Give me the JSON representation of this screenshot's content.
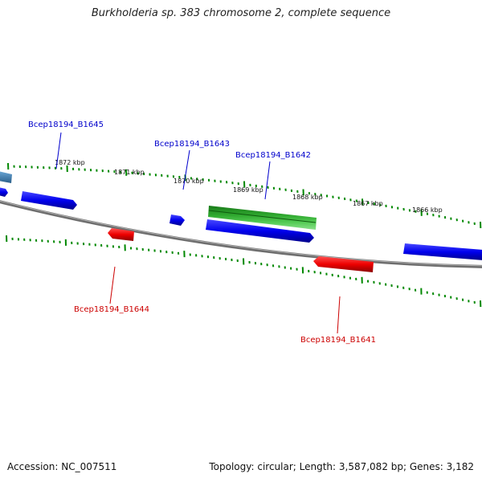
{
  "title": "Burkholderia sp. 383 chromosome 2, complete sequence",
  "footer": {
    "accession": "Accession: NC_007511",
    "topology": "Topology: circular; Length: 3,587,082 bp; Genes: 3,182"
  },
  "kbp_labels": [
    "1872 kbp",
    "1871 kbp",
    "1870 kbp",
    "1869 kbp",
    "1868 kbp",
    "1867 kbp",
    "1866 kbp"
  ],
  "genes": [
    {
      "name": "Bcep18194_B1645",
      "color": "#0000cc",
      "strand": "forward"
    },
    {
      "name": "Bcep18194_B1643",
      "color": "#0000cc",
      "strand": "forward"
    },
    {
      "name": "Bcep18194_B1642",
      "color": "#0000cc",
      "strand": "forward"
    },
    {
      "name": "Bcep18194_B1644",
      "color": "#cc0000",
      "strand": "reverse"
    },
    {
      "name": "Bcep18194_B1641",
      "color": "#cc0000",
      "strand": "reverse"
    }
  ],
  "colors": {
    "forward_gene": "#0000ee",
    "reverse_gene": "#ee0000",
    "rna_feature": "#22aa22",
    "other_feature": "#3a7fb0",
    "backbone": "#808080",
    "ticks": "#008800"
  }
}
